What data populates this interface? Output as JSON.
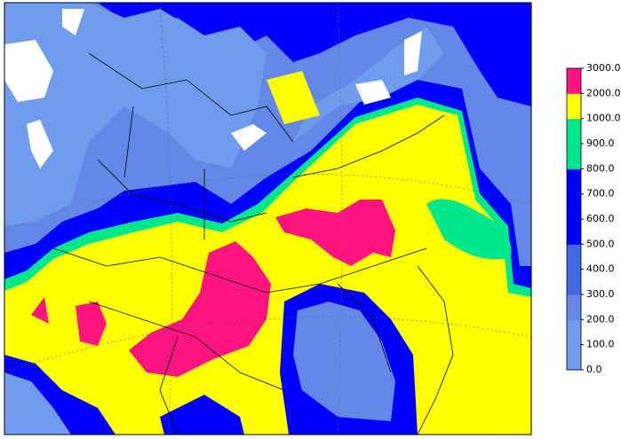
{
  "colorbar": {
    "ticks": [
      {
        "value": 0,
        "label": "0.0"
      },
      {
        "value": 100,
        "label": "100.0"
      },
      {
        "value": 200,
        "label": "200.0"
      },
      {
        "value": 300,
        "label": "300.0"
      },
      {
        "value": 400,
        "label": "400.0"
      },
      {
        "value": 500,
        "label": "500.0"
      },
      {
        "value": 600,
        "label": "600.0"
      },
      {
        "value": 700,
        "label": "700.0"
      },
      {
        "value": 800,
        "label": "800.0"
      },
      {
        "value": 900,
        "label": "900.0"
      },
      {
        "value": 1000,
        "label": "1000.0"
      },
      {
        "value": 2000,
        "label": "2000.0"
      },
      {
        "value": 3000,
        "label": "3000.0"
      }
    ],
    "colors": [
      "#6f9cec",
      "#6f9cec",
      "#6488e8",
      "#4169e1",
      "#4169e1",
      "#0000ff",
      "#0000ff",
      "#0000ff",
      "#00e68a",
      "#00e68a",
      "#ffff00",
      "#ff1480"
    ]
  }
}
